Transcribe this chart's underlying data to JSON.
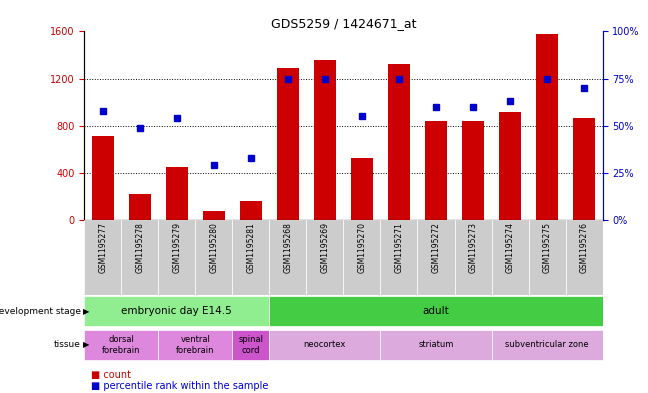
{
  "title": "GDS5259 / 1424671_at",
  "samples": [
    "GSM1195277",
    "GSM1195278",
    "GSM1195279",
    "GSM1195280",
    "GSM1195281",
    "GSM1195268",
    "GSM1195269",
    "GSM1195270",
    "GSM1195271",
    "GSM1195272",
    "GSM1195273",
    "GSM1195274",
    "GSM1195275",
    "GSM1195276"
  ],
  "counts": [
    710,
    220,
    450,
    80,
    160,
    1290,
    1360,
    530,
    1320,
    840,
    840,
    920,
    1580,
    870
  ],
  "percentiles": [
    58,
    49,
    54,
    29,
    33,
    75,
    75,
    55,
    75,
    60,
    60,
    63,
    75,
    70
  ],
  "ylim_left": [
    0,
    1600
  ],
  "ylim_right": [
    0,
    100
  ],
  "yticks_left": [
    0,
    400,
    800,
    1200,
    1600
  ],
  "yticks_right": [
    0,
    25,
    50,
    75,
    100
  ],
  "bar_color": "#cc0000",
  "dot_color": "#0000cc",
  "dev_stage_groups": [
    {
      "label": "embryonic day E14.5",
      "start": 0,
      "end": 5,
      "color": "#90ee90"
    },
    {
      "label": "adult",
      "start": 5,
      "end": 14,
      "color": "#44cc44"
    }
  ],
  "tissue_groups": [
    {
      "label": "dorsal\nforebrain",
      "start": 0,
      "end": 2,
      "color": "#dd88dd"
    },
    {
      "label": "ventral\nforebrain",
      "start": 2,
      "end": 4,
      "color": "#dd88dd"
    },
    {
      "label": "spinal\ncord",
      "start": 4,
      "end": 5,
      "color": "#cc55cc"
    },
    {
      "label": "neocortex",
      "start": 5,
      "end": 8,
      "color": "#ddaadd"
    },
    {
      "label": "striatum",
      "start": 8,
      "end": 11,
      "color": "#ddaadd"
    },
    {
      "label": "subventricular zone",
      "start": 11,
      "end": 14,
      "color": "#ddaadd"
    }
  ],
  "tick_bg_color": "#cccccc",
  "legend_count_color": "#cc0000",
  "legend_pct_color": "#0000cc"
}
